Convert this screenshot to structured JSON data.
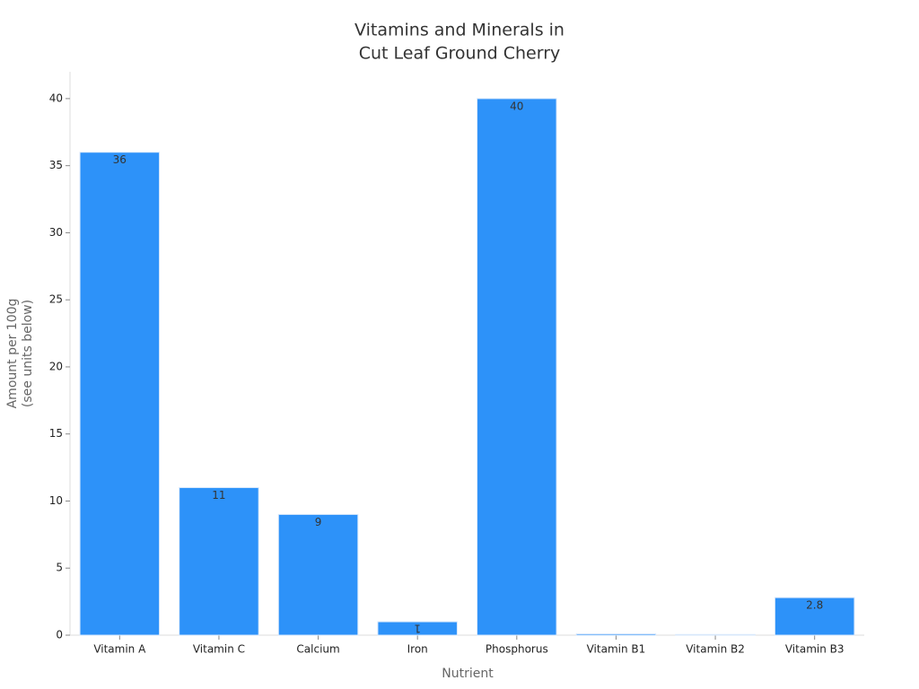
{
  "chart_data": {
    "type": "bar",
    "title": [
      "Vitamins and Minerals in",
      "Cut Leaf Ground Cherry"
    ],
    "x_label": "Nutrient",
    "y_label": [
      "Amount per 100g",
      "(see units below)"
    ],
    "categories": [
      "Vitamin A",
      "Vitamin C",
      "Calcium",
      "Iron",
      "Phosphorus",
      "Vitamin B1",
      "Vitamin B2",
      "Vitamin B3"
    ],
    "values": [
      36,
      11,
      9,
      1,
      40,
      0.1,
      0.05,
      2.8
    ],
    "value_labels": [
      "36",
      "11",
      "9",
      "1",
      "40",
      null,
      null,
      "2.8"
    ],
    "color": "#2d92f9",
    "ylim": [
      0,
      42
    ],
    "yticks": [
      0,
      5,
      10,
      15,
      20,
      25,
      30,
      35,
      40
    ],
    "grid": false
  }
}
